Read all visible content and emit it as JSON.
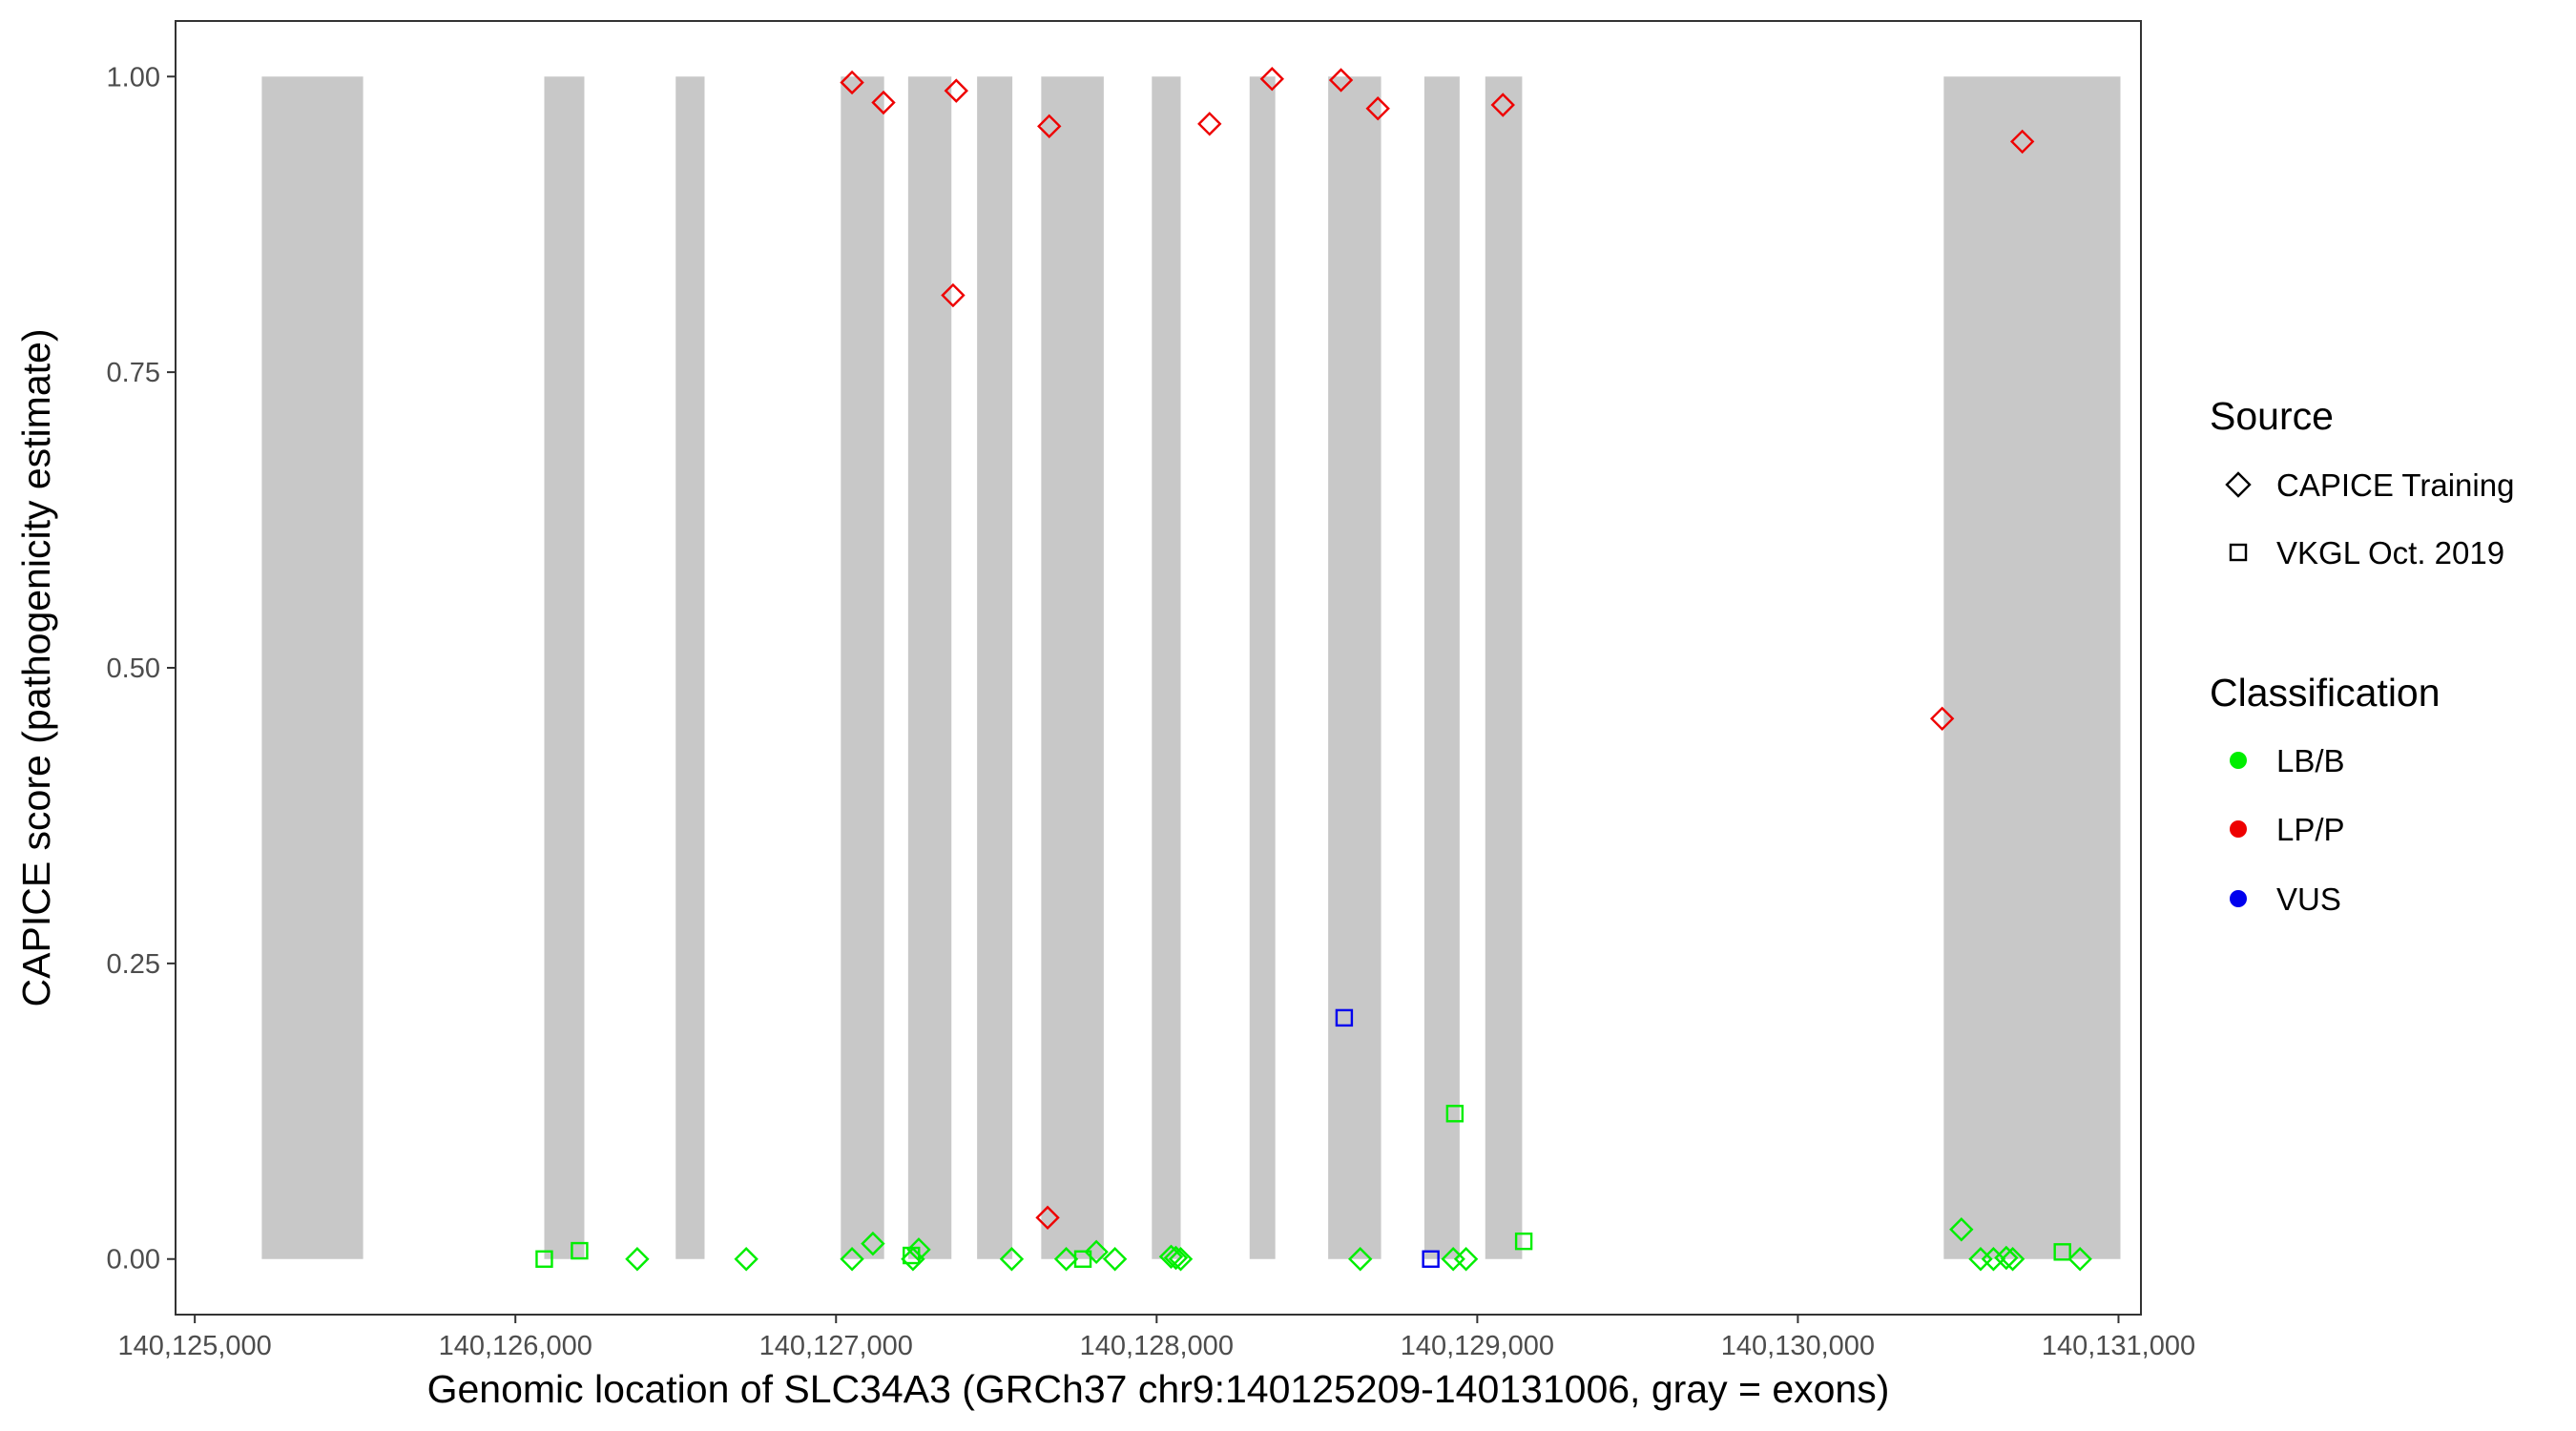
{
  "chart_data": {
    "type": "scatter",
    "xlabel": "Genomic location of SLC34A3 (GRCh37 chr9:140125209-140131006, gray = exons)",
    "ylabel": "CAPICE score (pathogenicity estimate)",
    "xlim": [
      124940,
      131070
    ],
    "ylim": [
      -0.047,
      1.047
    ],
    "x_ticks": [
      125000,
      126000,
      127000,
      128000,
      129000,
      130000,
      131000
    ],
    "x_tick_labels": [
      "140,125,000",
      "140,126,000",
      "140,127,000",
      "140,128,000",
      "140,129,000",
      "140,130,000",
      "140,131,000"
    ],
    "y_ticks": [
      0,
      0.25,
      0.5,
      0.75,
      1.0
    ],
    "y_tick_labels": [
      "0.00",
      "0.25",
      "0.50",
      "0.75",
      "1.00"
    ],
    "grid": false,
    "exon_regions_shaded": true,
    "exon_color": "#c8c8c8",
    "exons": [
      [
        125209,
        125525
      ],
      [
        126090,
        126215
      ],
      [
        126500,
        126590
      ],
      [
        127015,
        127150
      ],
      [
        127225,
        127360
      ],
      [
        127440,
        127550
      ],
      [
        127640,
        127835
      ],
      [
        127985,
        128075
      ],
      [
        128290,
        128370
      ],
      [
        128535,
        128700
      ],
      [
        128835,
        128945
      ],
      [
        129025,
        129140
      ],
      [
        130455,
        131006
      ]
    ],
    "legend": {
      "placement": "right",
      "source_title": "Source",
      "source_entries": [
        {
          "label": "CAPICE Training",
          "shape": "diamond"
        },
        {
          "label": "VKGL Oct. 2019",
          "shape": "square"
        }
      ],
      "classification_title": "Classification",
      "classification_entries": [
        {
          "label": "LB/B",
          "color": "#00ee00"
        },
        {
          "label": "LP/P",
          "color": "#ee0000"
        },
        {
          "label": "VUS",
          "color": "#0000ee"
        }
      ]
    },
    "series": [
      {
        "classification": "LP/P",
        "source": "CAPICE Training",
        "shape": "diamond",
        "color": "#ee0000",
        "points": [
          [
            127050,
            0.995
          ],
          [
            127148,
            0.978
          ],
          [
            127375,
            0.988
          ],
          [
            127365,
            0.815
          ],
          [
            127665,
            0.958
          ],
          [
            127660,
            0.035
          ],
          [
            128165,
            0.96
          ],
          [
            128360,
            0.998
          ],
          [
            128575,
            0.997
          ],
          [
            128690,
            0.973
          ],
          [
            129080,
            0.976
          ],
          [
            130700,
            0.945
          ],
          [
            130450,
            0.457
          ]
        ]
      },
      {
        "classification": "LB/B",
        "source": "CAPICE Training",
        "shape": "diamond",
        "color": "#00ee00",
        "points": [
          [
            126380,
            0.0
          ],
          [
            126720,
            0.0
          ],
          [
            127050,
            0.0
          ],
          [
            127115,
            0.013
          ],
          [
            127240,
            0.0
          ],
          [
            127258,
            0.008
          ],
          [
            127548,
            0.0
          ],
          [
            127718,
            0.0
          ],
          [
            127812,
            0.006
          ],
          [
            127870,
            0.0
          ],
          [
            128045,
            0.002
          ],
          [
            128060,
            0.001
          ],
          [
            128075,
            0.0
          ],
          [
            128635,
            0.0
          ],
          [
            128925,
            0.0
          ],
          [
            128965,
            0.0
          ],
          [
            130510,
            0.025
          ],
          [
            130570,
            0.0
          ],
          [
            130610,
            0.0
          ],
          [
            130650,
            0.001
          ],
          [
            130670,
            0.0
          ],
          [
            130880,
            0.0
          ]
        ]
      },
      {
        "classification": "LB/B",
        "source": "VKGL Oct. 2019",
        "shape": "square",
        "color": "#00ee00",
        "points": [
          [
            126090,
            0.0
          ],
          [
            126200,
            0.007
          ],
          [
            127235,
            0.003
          ],
          [
            127770,
            0.0
          ],
          [
            128930,
            0.123
          ],
          [
            129145,
            0.015
          ],
          [
            130825,
            0.006
          ]
        ]
      },
      {
        "classification": "VUS",
        "source": "VKGL Oct. 2019",
        "shape": "square",
        "color": "#0000ee",
        "points": [
          [
            128585,
            0.204
          ],
          [
            128855,
            0.0
          ]
        ]
      }
    ]
  }
}
